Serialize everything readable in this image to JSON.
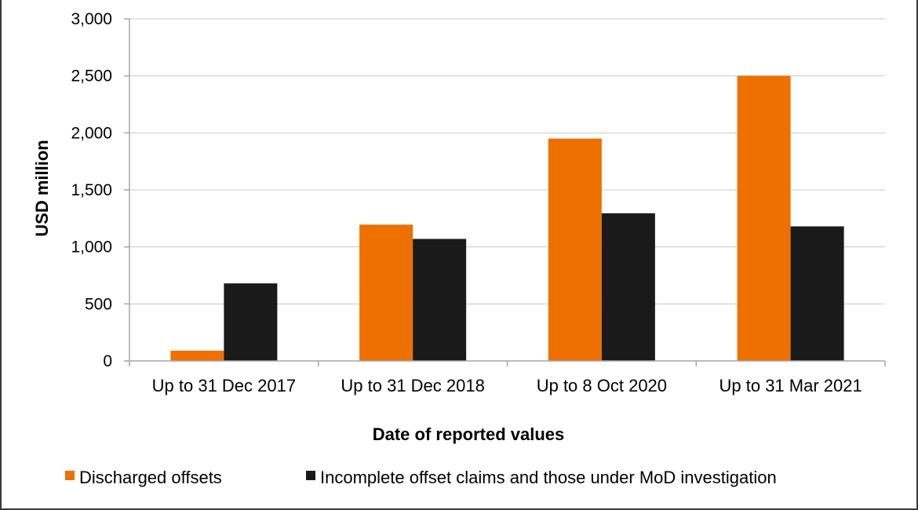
{
  "chart_data": {
    "type": "bar",
    "title": "",
    "xlabel": "Date of reported values",
    "ylabel": "USD million",
    "ylim": [
      0,
      3000
    ],
    "yticks": [
      0,
      500,
      1000,
      1500,
      2000,
      2500,
      3000
    ],
    "ytick_labels": [
      "0",
      "500",
      "1,000",
      "1,500",
      "2,000",
      "2,500",
      "3,000"
    ],
    "categories": [
      "Up to 31 Dec 2017",
      "Up to 31 Dec 2018",
      "Up to 8 Oct 2020",
      "Up to 31 Mar 2021"
    ],
    "series": [
      {
        "name": "Discharged offsets",
        "color": "#ed7000",
        "values": [
          90,
          1195,
          1950,
          2500
        ]
      },
      {
        "name": "Incomplete offset claims and those under MoD investigation",
        "color": "#1a1a1a",
        "values": [
          680,
          1070,
          1295,
          1180
        ]
      }
    ],
    "grid": true,
    "legend_position": "bottom"
  }
}
